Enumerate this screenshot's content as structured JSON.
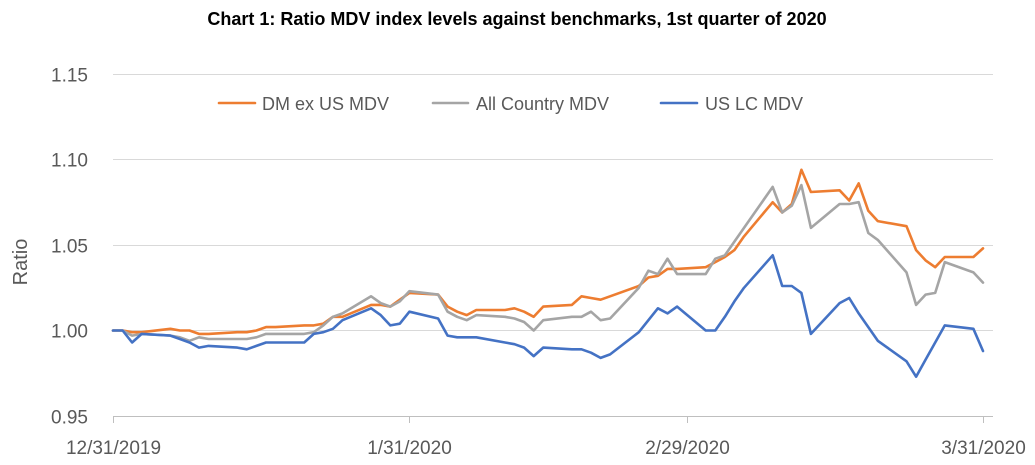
{
  "chart_data": {
    "type": "line",
    "title": "Chart 1: Ratio MDV index levels against benchmarks, 1st quarter of 2020",
    "ylabel": "Ratio",
    "ylim": [
      0.95,
      1.15
    ],
    "yticks": [
      "0.95",
      "1.00",
      "1.05",
      "1.10",
      "1.15"
    ],
    "xlim": [
      "12/31/2019",
      "3/31/2020"
    ],
    "xticks": [
      "12/31/2019",
      "1/31/2020",
      "2/29/2020",
      "3/31/2020"
    ],
    "grid": "horizontal",
    "legend_position": "top",
    "x": [
      "12/31/2019",
      "1/1/2020",
      "1/2/2020",
      "1/3/2020",
      "1/6/2020",
      "1/7/2020",
      "1/8/2020",
      "1/9/2020",
      "1/10/2020",
      "1/13/2020",
      "1/14/2020",
      "1/15/2020",
      "1/16/2020",
      "1/17/2020",
      "1/20/2020",
      "1/21/2020",
      "1/22/2020",
      "1/23/2020",
      "1/24/2020",
      "1/27/2020",
      "1/28/2020",
      "1/29/2020",
      "1/30/2020",
      "1/31/2020",
      "2/3/2020",
      "2/4/2020",
      "2/5/2020",
      "2/6/2020",
      "2/7/2020",
      "2/10/2020",
      "2/11/2020",
      "2/12/2020",
      "2/13/2020",
      "2/14/2020",
      "2/17/2020",
      "2/18/2020",
      "2/19/2020",
      "2/20/2020",
      "2/21/2020",
      "2/24/2020",
      "2/25/2020",
      "2/26/2020",
      "2/27/2020",
      "2/28/2020",
      "3/2/2020",
      "3/3/2020",
      "3/4/2020",
      "3/5/2020",
      "3/6/2020",
      "3/9/2020",
      "3/10/2020",
      "3/11/2020",
      "3/12/2020",
      "3/13/2020",
      "3/16/2020",
      "3/17/2020",
      "3/18/2020",
      "3/19/2020",
      "3/20/2020",
      "3/23/2020",
      "3/24/2020",
      "3/25/2020",
      "3/26/2020",
      "3/27/2020",
      "3/30/2020",
      "3/31/2020"
    ],
    "series": [
      {
        "name": "DM ex US MDV",
        "color": "#ED7D31",
        "values": [
          1.0,
          1.0,
          0.999,
          0.999,
          1.001,
          1.0,
          1.0,
          0.998,
          0.998,
          0.999,
          0.999,
          1.0,
          1.002,
          1.002,
          1.003,
          1.003,
          1.004,
          1.008,
          1.008,
          1.015,
          1.015,
          1.014,
          1.018,
          1.022,
          1.021,
          1.014,
          1.011,
          1.009,
          1.012,
          1.012,
          1.013,
          1.011,
          1.008,
          1.014,
          1.015,
          1.02,
          1.019,
          1.018,
          1.02,
          1.026,
          1.031,
          1.032,
          1.036,
          1.036,
          1.037,
          1.04,
          1.043,
          1.047,
          1.055,
          1.075,
          1.069,
          1.074,
          1.094,
          1.081,
          1.082,
          1.076,
          1.086,
          1.07,
          1.064,
          1.061,
          1.047,
          1.041,
          1.037,
          1.043,
          1.043,
          1.048
        ]
      },
      {
        "name": "All Country MDV",
        "color": "#A5A5A5",
        "values": [
          1.0,
          1.0,
          0.997,
          0.998,
          0.997,
          0.996,
          0.994,
          0.996,
          0.995,
          0.995,
          0.995,
          0.996,
          0.998,
          0.998,
          0.998,
          0.999,
          1.003,
          1.008,
          1.01,
          1.02,
          1.016,
          1.014,
          1.017,
          1.023,
          1.021,
          1.011,
          1.008,
          1.006,
          1.009,
          1.008,
          1.007,
          1.005,
          1.0,
          1.006,
          1.008,
          1.008,
          1.011,
          1.006,
          1.007,
          1.025,
          1.035,
          1.033,
          1.042,
          1.033,
          1.033,
          1.042,
          1.044,
          1.052,
          1.06,
          1.084,
          1.069,
          1.073,
          1.085,
          1.06,
          1.074,
          1.074,
          1.075,
          1.057,
          1.053,
          1.034,
          1.015,
          1.021,
          1.022,
          1.04,
          1.034,
          1.028
        ]
      },
      {
        "name": "US LC MDV",
        "color": "#4472C4",
        "values": [
          1.0,
          1.0,
          0.993,
          0.998,
          0.997,
          0.995,
          0.993,
          0.99,
          0.991,
          0.99,
          0.989,
          0.991,
          0.993,
          0.993,
          0.993,
          0.998,
          0.999,
          1.001,
          1.006,
          1.013,
          1.009,
          1.003,
          1.004,
          1.011,
          1.007,
          0.997,
          0.996,
          0.996,
          0.996,
          0.993,
          0.992,
          0.99,
          0.985,
          0.99,
          0.989,
          0.989,
          0.987,
          0.984,
          0.986,
          0.999,
          1.006,
          1.013,
          1.01,
          1.014,
          1.0,
          1.0,
          1.008,
          1.017,
          1.025,
          1.044,
          1.026,
          1.026,
          1.022,
          0.998,
          1.016,
          1.019,
          1.01,
          1.002,
          0.994,
          0.982,
          0.973,
          0.983,
          0.993,
          1.003,
          1.001,
          0.988
        ]
      }
    ]
  }
}
